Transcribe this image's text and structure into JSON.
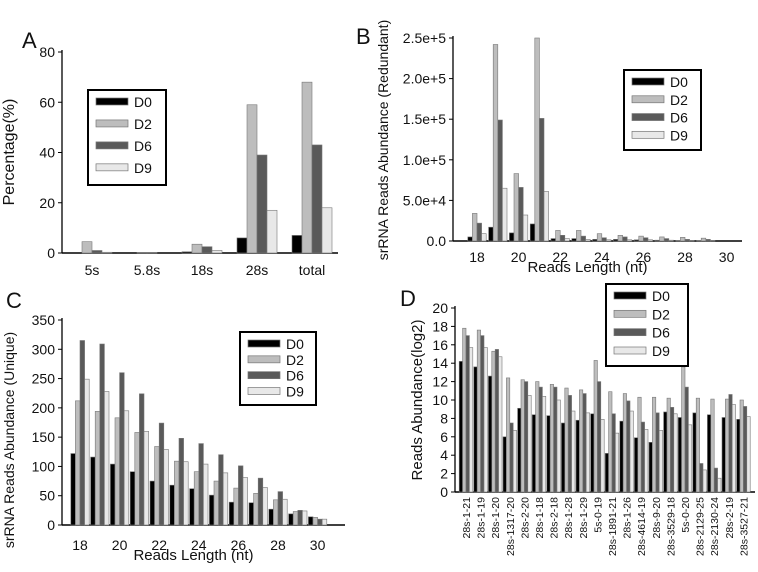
{
  "colors": {
    "D0": "#000000",
    "D2": "#bdbdbd",
    "D6": "#5a5a5a",
    "D9": "#e8e8e8",
    "outline": "#777777"
  },
  "chart_data": [
    {
      "panel": "A",
      "type": "bar",
      "xlabel": "",
      "ylabel": "Percentage(%)",
      "ylim": [
        0,
        80
      ],
      "yticks": [
        "0",
        "20",
        "40",
        "60",
        "80"
      ],
      "categories": [
        "5s",
        "5.8s",
        "18s",
        "28s",
        "total"
      ],
      "legend": "upper-left",
      "series": [
        {
          "name": "D0",
          "values": [
            0,
            0,
            0.5,
            6,
            7
          ]
        },
        {
          "name": "D2",
          "values": [
            4.5,
            0.1,
            3.5,
            59,
            68
          ]
        },
        {
          "name": "D6",
          "values": [
            1,
            0.1,
            2.5,
            39,
            43
          ]
        },
        {
          "name": "D9",
          "values": [
            0.3,
            0,
            1,
            17,
            18
          ]
        }
      ]
    },
    {
      "panel": "B",
      "type": "bar",
      "xlabel": "Reads Length (nt)",
      "ylabel": "srRNA Reads Abundance (Redundant)",
      "ylim": [
        0,
        250000
      ],
      "yticks": [
        "0.0",
        "5.0e+4",
        "1.0e+5",
        "1.5e+5",
        "2.0e+5",
        "2.5e+5"
      ],
      "categories": [
        "18",
        "19",
        "20",
        "21",
        "22",
        "23",
        "24",
        "25",
        "26",
        "27",
        "28",
        "29",
        "30"
      ],
      "xtick_labels": [
        "18",
        "",
        "20",
        "",
        "22",
        "",
        "24",
        "",
        "26",
        "",
        "28",
        "",
        "30"
      ],
      "legend": "right",
      "series": [
        {
          "name": "D0",
          "values": [
            5000,
            17000,
            10000,
            21000,
            3000,
            3000,
            2000,
            2000,
            1500,
            1000,
            500,
            500,
            0
          ]
        },
        {
          "name": "D2",
          "values": [
            34000,
            242000,
            83000,
            250000,
            13000,
            13000,
            9000,
            7000,
            6000,
            5000,
            4500,
            3500,
            0
          ]
        },
        {
          "name": "D6",
          "values": [
            22000,
            149000,
            66000,
            151000,
            7000,
            6000,
            4000,
            5000,
            4000,
            3000,
            2000,
            2000,
            0
          ]
        },
        {
          "name": "D9",
          "values": [
            9000,
            65000,
            32000,
            61000,
            3000,
            2000,
            1500,
            1500,
            1500,
            1000,
            500,
            500,
            0
          ]
        }
      ]
    },
    {
      "panel": "C",
      "type": "bar",
      "xlabel": "Reads Length (nt)",
      "ylabel": "srRNA Reads Abundance (Unique)",
      "ylim": [
        0,
        350
      ],
      "yticks": [
        "0",
        "50",
        "100",
        "150",
        "200",
        "250",
        "300",
        "350"
      ],
      "categories": [
        "18",
        "19",
        "20",
        "21",
        "22",
        "23",
        "24",
        "25",
        "26",
        "27",
        "28",
        "29",
        "30"
      ],
      "xtick_labels": [
        "18",
        "",
        "20",
        "",
        "22",
        "",
        "24",
        "",
        "26",
        "",
        "28",
        "",
        "30"
      ],
      "legend": "upper-right",
      "series": [
        {
          "name": "D0",
          "values": [
            122,
            116,
            104,
            91,
            75,
            68,
            62,
            51,
            39,
            38,
            27,
            19,
            14
          ]
        },
        {
          "name": "D2",
          "values": [
            212,
            194,
            183,
            158,
            134,
            109,
            91,
            75,
            63,
            54,
            43,
            23,
            13
          ]
        },
        {
          "name": "D6",
          "values": [
            315,
            309,
            260,
            224,
            174,
            148,
            139,
            120,
            101,
            80,
            57,
            25,
            10
          ]
        },
        {
          "name": "D9",
          "values": [
            249,
            228,
            195,
            160,
            129,
            108,
            104,
            89,
            81,
            64,
            44,
            24,
            10
          ]
        }
      ]
    },
    {
      "panel": "D",
      "type": "bar",
      "xlabel": "",
      "ylabel": "Reads Abundance(log2)",
      "ylim": [
        0,
        20
      ],
      "yticks": [
        "0",
        "2",
        "4",
        "6",
        "8",
        "10",
        "12",
        "14",
        "16",
        "18",
        "20"
      ],
      "categories": [
        "28s-1-21",
        "28s-1-19",
        "28s-1-20",
        "28s-1317-20",
        "28s-2-20",
        "28s-1-18",
        "28s-2-18",
        "28s-1-28",
        "28s-1-29",
        "5s-0-19",
        "28s-1891-21",
        "28s-1-26",
        "28s-4614-19",
        "28s-9-20",
        "28s-3529-18",
        "5s-0-20",
        "28s-2129-25",
        "28s-2130-24",
        "28s-2-19",
        "28s-3527-21"
      ],
      "legend": "upper-right",
      "series": [
        {
          "name": "D0",
          "values": [
            14.2,
            13.6,
            12.6,
            6.0,
            9.1,
            8.4,
            8.3,
            7.5,
            7.8,
            8.5,
            4.2,
            7.7,
            5.9,
            5.4,
            8.7,
            8.1,
            8.6,
            8.4,
            8.1,
            7.9
          ]
        },
        {
          "name": "D2",
          "values": [
            17.8,
            17.6,
            15.3,
            12.4,
            12.2,
            12.0,
            11.7,
            11.3,
            11.1,
            14.3,
            10.9,
            10.7,
            10.3,
            10.3,
            10.2,
            13.6,
            10.2,
            10.1,
            10.1,
            10.0
          ]
        },
        {
          "name": "D6",
          "values": [
            17.0,
            17.0,
            15.5,
            7.5,
            12.0,
            11.4,
            11.4,
            10.5,
            10.7,
            12.0,
            8.5,
            9.9,
            7.6,
            8.6,
            9.2,
            11.4,
            3.1,
            2.6,
            10.6,
            9.3
          ]
        },
        {
          "name": "D9",
          "values": [
            15.7,
            15.7,
            14.7,
            6.7,
            10.5,
            10.4,
            10.0,
            8.8,
            8.6,
            7.9,
            6.4,
            8.8,
            6.8,
            6.7,
            8.5,
            7.3,
            2.4,
            1.5,
            9.5,
            8.2
          ]
        }
      ]
    }
  ]
}
